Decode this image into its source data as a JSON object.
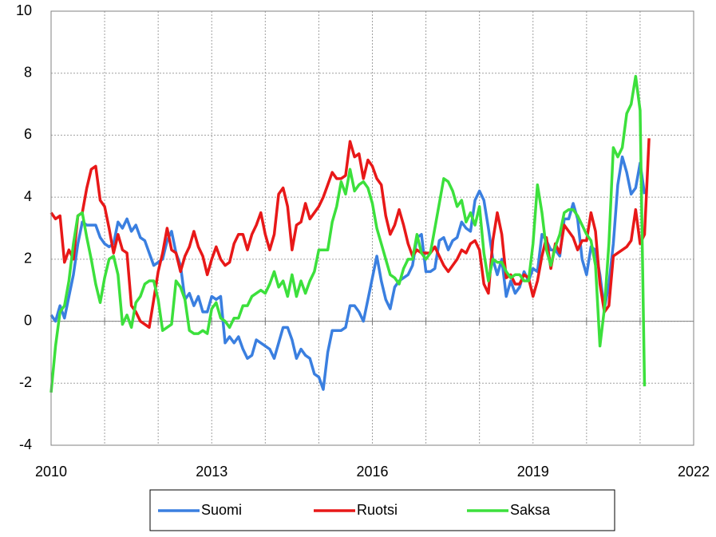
{
  "chart_data": {
    "type": "line",
    "x": [
      2010,
      2010.083,
      2010.167,
      2010.25,
      2010.333,
      2010.417,
      2010.5,
      2010.583,
      2010.667,
      2010.75,
      2010.833,
      2010.917,
      2011,
      2011.083,
      2011.167,
      2011.25,
      2011.333,
      2011.417,
      2011.5,
      2011.583,
      2011.667,
      2011.75,
      2011.833,
      2011.917,
      2012,
      2012.083,
      2012.167,
      2012.25,
      2012.333,
      2012.417,
      2012.5,
      2012.583,
      2012.667,
      2012.75,
      2012.833,
      2012.917,
      2013,
      2013.083,
      2013.167,
      2013.25,
      2013.333,
      2013.417,
      2013.5,
      2013.583,
      2013.667,
      2013.75,
      2013.833,
      2013.917,
      2014,
      2014.083,
      2014.167,
      2014.25,
      2014.333,
      2014.417,
      2014.5,
      2014.583,
      2014.667,
      2014.75,
      2014.833,
      2014.917,
      2015,
      2015.083,
      2015.167,
      2015.25,
      2015.333,
      2015.417,
      2015.5,
      2015.583,
      2015.667,
      2015.75,
      2015.833,
      2015.917,
      2016,
      2016.083,
      2016.167,
      2016.25,
      2016.333,
      2016.417,
      2016.5,
      2016.583,
      2016.667,
      2016.75,
      2016.833,
      2016.917,
      2017,
      2017.083,
      2017.167,
      2017.25,
      2017.333,
      2017.417,
      2017.5,
      2017.583,
      2017.667,
      2017.75,
      2017.833,
      2017.917,
      2018,
      2018.083,
      2018.167,
      2018.25,
      2018.333,
      2018.417,
      2018.5,
      2018.583,
      2018.667,
      2018.75,
      2018.833,
      2018.917,
      2019,
      2019.083,
      2019.167,
      2019.25,
      2019.333,
      2019.417,
      2019.5,
      2019.583,
      2019.667,
      2019.75,
      2019.833,
      2019.917,
      2020,
      2020.083,
      2020.167,
      2020.25,
      2020.333,
      2020.417,
      2020.5,
      2020.583,
      2020.667,
      2020.75,
      2020.833,
      2020.917,
      2021,
      2021.083,
      2021.167
    ],
    "series": [
      {
        "name": "Suomi",
        "color": "#3a7fe0",
        "values": [
          0.2,
          0,
          0.5,
          0.1,
          0.8,
          1.5,
          2.5,
          3.2,
          3.1,
          3.1,
          3.1,
          2.7,
          2.5,
          2.4,
          2.5,
          3.2,
          3.0,
          3.3,
          2.9,
          3.1,
          2.7,
          2.6,
          2.2,
          1.8,
          1.9,
          2.0,
          2.6,
          2.9,
          2.2,
          1.8,
          0.7,
          0.9,
          0.5,
          0.8,
          0.3,
          0.3,
          0.8,
          0.7,
          0.8,
          -0.7,
          -0.5,
          -0.7,
          -0.5,
          -0.9,
          -1.2,
          -1.1,
          -0.6,
          -0.7,
          -0.8,
          -0.9,
          -1.2,
          -0.7,
          -0.2,
          -0.2,
          -0.6,
          -1.2,
          -0.9,
          -1.1,
          -1.2,
          -1.7,
          -1.8,
          -2.2,
          -1.0,
          -0.3,
          -0.3,
          -0.3,
          -0.2,
          0.5,
          0.5,
          0.3,
          0,
          0.7,
          1.4,
          2.1,
          1.3,
          0.7,
          0.4,
          1.1,
          1.3,
          1.4,
          1.5,
          1.8,
          2.7,
          2.8,
          1.6,
          1.6,
          1.7,
          2.6,
          2.7,
          2.3,
          2.6,
          2.7,
          3.2,
          3.0,
          2.9,
          3.9,
          4.2,
          3.9,
          3.0,
          2.0,
          1.5,
          2.0,
          0.8,
          1.3,
          0.9,
          1.1,
          1.6,
          1.3,
          1.7,
          1.6,
          2.8,
          2.6,
          2.3,
          2.3,
          2.1,
          3.3,
          3.3,
          3.8,
          3.3,
          2.0,
          1.5,
          2.4,
          2.3,
          1.5,
          0.4,
          1.2,
          2.5,
          4.4,
          5.3,
          4.8,
          4.1,
          4.3,
          5.1,
          4.1,
          null
        ]
      },
      {
        "name": "Ruotsi",
        "color": "#e81818",
        "values": [
          3.5,
          3.3,
          3.4,
          1.9,
          2.3,
          2.0,
          3.4,
          3.5,
          4.3,
          4.9,
          5.0,
          3.9,
          3.7,
          3.0,
          2.2,
          2.8,
          2.3,
          2.2,
          0.5,
          0.3,
          0,
          -0.1,
          -0.2,
          0.7,
          1.6,
          2.2,
          3.0,
          2.3,
          2.2,
          1.6,
          2.1,
          2.4,
          2.9,
          2.4,
          2.1,
          1.5,
          2.0,
          2.4,
          2.0,
          1.8,
          1.9,
          2.5,
          2.8,
          2.8,
          2.3,
          2.8,
          3.1,
          3.5,
          2.8,
          2.3,
          2.8,
          4.1,
          4.3,
          3.7,
          2.3,
          3.1,
          3.2,
          3.8,
          3.3,
          3.5,
          3.7,
          4.0,
          4.4,
          4.8,
          4.6,
          4.6,
          4.7,
          5.8,
          5.3,
          5.4,
          4.6,
          5.2,
          5.0,
          4.6,
          4.4,
          3.4,
          2.8,
          3.1,
          3.6,
          3.1,
          2.5,
          2.1,
          2.3,
          2.2,
          2.2,
          2.2,
          2.4,
          2.1,
          1.8,
          1.6,
          1.8,
          2.0,
          2.3,
          2.2,
          2.5,
          2.6,
          2.3,
          1.2,
          0.9,
          2.6,
          3.5,
          2.8,
          1.4,
          1.5,
          1.2,
          1.2,
          1.5,
          1.4,
          0.8,
          1.3,
          2.1,
          2.7,
          1.7,
          2.5,
          2.2,
          3.1,
          2.9,
          2.7,
          2.3,
          2.6,
          2.6,
          3.5,
          2.9,
          1.2,
          0.3,
          0.5,
          2.1,
          2.2,
          2.3,
          2.4,
          2.6,
          3.6,
          2.5,
          2.8,
          5.9
        ]
      },
      {
        "name": "Saksa",
        "color": "#3ce03c",
        "values": [
          -2.3,
          -0.8,
          0.3,
          0.5,
          1.3,
          2.5,
          3.4,
          3.5,
          2.7,
          2.0,
          1.2,
          0.6,
          1.4,
          2.0,
          2.1,
          1.5,
          -0.1,
          0.2,
          -0.2,
          0.6,
          0.8,
          1.2,
          1.3,
          1.3,
          0.7,
          -0.3,
          -0.2,
          -0.1,
          1.3,
          1.1,
          0.7,
          -0.3,
          -0.4,
          -0.4,
          -0.3,
          -0.4,
          0.4,
          0.6,
          0.1,
          0,
          -0.2,
          0.1,
          0.1,
          0.5,
          0.5,
          0.8,
          0.9,
          1.0,
          0.9,
          1.2,
          1.6,
          1.1,
          1.3,
          0.8,
          1.5,
          0.8,
          1.3,
          0.9,
          1.3,
          1.6,
          2.3,
          2.3,
          2.3,
          3.2,
          3.7,
          4.5,
          4.1,
          4.9,
          4.2,
          4.4,
          4.5,
          4.3,
          3.8,
          3.0,
          2.5,
          2.0,
          1.5,
          1.4,
          1.2,
          1.7,
          2.0,
          2.0,
          2.8,
          2.2,
          2.0,
          2.2,
          3.0,
          3.8,
          4.6,
          4.5,
          4.2,
          3.7,
          3.9,
          3.2,
          3.5,
          3.1,
          3.7,
          2.2,
          1.3,
          2.0,
          1.9,
          1.9,
          1.6,
          1.4,
          1.5,
          1.5,
          1.3,
          1.3,
          2.5,
          4.4,
          3.5,
          2.3,
          1.8,
          2.4,
          2.8,
          3.5,
          3.6,
          3.6,
          3.4,
          3.1,
          2.8,
          2.6,
          1.8,
          -0.8,
          0.4,
          2.5,
          5.6,
          5.3,
          5.6,
          6.7,
          7.0,
          7.9,
          6.8,
          -2.1,
          null
        ]
      }
    ],
    "xlim": [
      2010,
      2022
    ],
    "xticks": [
      2010,
      2013,
      2016,
      2019,
      2022
    ],
    "minor_xticks": [
      2011,
      2012,
      2014,
      2015,
      2017,
      2018,
      2020,
      2021
    ],
    "ylim": [
      -4,
      10
    ],
    "yticks": [
      -4,
      -2,
      0,
      2,
      4,
      6,
      8,
      10
    ],
    "grid": true,
    "legend": "bottom"
  }
}
